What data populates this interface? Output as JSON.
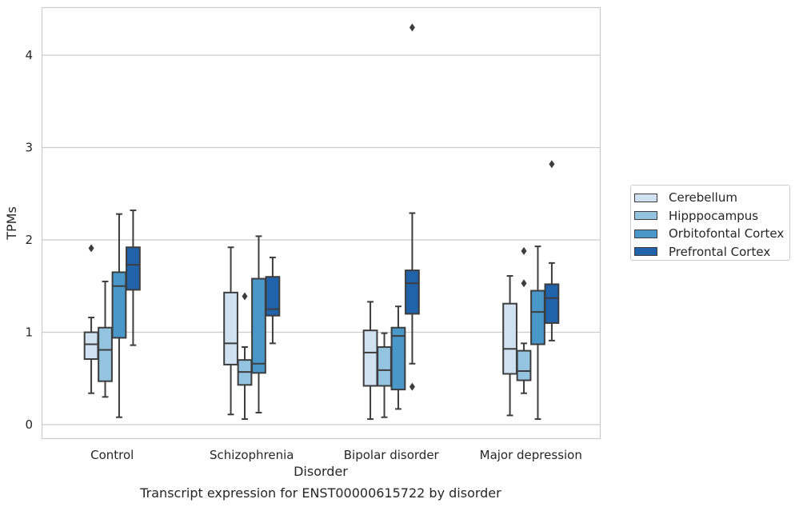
{
  "chart_data": {
    "type": "box",
    "title": "Transcript expression for ENST00000615722 by disorder",
    "xlabel": "Disorder",
    "ylabel": "TPMs",
    "ylim": [
      -0.15,
      4.5
    ],
    "yticks": [
      0,
      1,
      2,
      3,
      4
    ],
    "grid": "horizontal",
    "legend_position": "right",
    "categories": [
      "Control",
      "Schizophrenia",
      "Bipolar disorder",
      "Major depression"
    ],
    "series": [
      {
        "name": "Cerebellum",
        "color": "#d0e1f2",
        "boxes": [
          {
            "whisker_low": 0.34,
            "q1": 0.71,
            "median": 0.87,
            "q3": 1.0,
            "whisker_high": 1.16,
            "outliers": [
              1.91
            ]
          },
          {
            "whisker_low": 0.11,
            "q1": 0.65,
            "median": 0.88,
            "q3": 1.43,
            "whisker_high": 1.92,
            "outliers": []
          },
          {
            "whisker_low": 0.06,
            "q1": 0.42,
            "median": 0.78,
            "q3": 1.02,
            "whisker_high": 1.33,
            "outliers": []
          },
          {
            "whisker_low": 0.1,
            "q1": 0.55,
            "median": 0.82,
            "q3": 1.31,
            "whisker_high": 1.61,
            "outliers": []
          }
        ]
      },
      {
        "name": "Hipppocampus",
        "color": "#94c4df",
        "boxes": [
          {
            "whisker_low": 0.3,
            "q1": 0.47,
            "median": 0.81,
            "q3": 1.05,
            "whisker_high": 1.55,
            "outliers": []
          },
          {
            "whisker_low": 0.06,
            "q1": 0.43,
            "median": 0.57,
            "q3": 0.7,
            "whisker_high": 0.84,
            "outliers": [
              1.39
            ]
          },
          {
            "whisker_low": 0.08,
            "q1": 0.42,
            "median": 0.59,
            "q3": 0.84,
            "whisker_high": 0.99,
            "outliers": []
          },
          {
            "whisker_low": 0.34,
            "q1": 0.48,
            "median": 0.58,
            "q3": 0.8,
            "whisker_high": 0.88,
            "outliers": [
              1.53,
              1.88
            ]
          }
        ]
      },
      {
        "name": "Orbitofontal Cortex",
        "color": "#4a98c9",
        "boxes": [
          {
            "whisker_low": 0.08,
            "q1": 0.94,
            "median": 1.5,
            "q3": 1.65,
            "whisker_high": 2.28,
            "outliers": []
          },
          {
            "whisker_low": 0.13,
            "q1": 0.56,
            "median": 0.66,
            "q3": 1.58,
            "whisker_high": 2.04,
            "outliers": []
          },
          {
            "whisker_low": 0.17,
            "q1": 0.38,
            "median": 0.96,
            "q3": 1.05,
            "whisker_high": 1.28,
            "outliers": []
          },
          {
            "whisker_low": 0.06,
            "q1": 0.87,
            "median": 1.22,
            "q3": 1.45,
            "whisker_high": 1.93,
            "outliers": []
          }
        ]
      },
      {
        "name": "Prefrontal Cortex",
        "color": "#2163aa",
        "boxes": [
          {
            "whisker_low": 0.86,
            "q1": 1.46,
            "median": 1.73,
            "q3": 1.92,
            "whisker_high": 2.32,
            "outliers": []
          },
          {
            "whisker_low": 0.88,
            "q1": 1.18,
            "median": 1.25,
            "q3": 1.6,
            "whisker_high": 1.81,
            "outliers": []
          },
          {
            "whisker_low": 0.66,
            "q1": 1.2,
            "median": 1.53,
            "q3": 1.67,
            "whisker_high": 2.29,
            "outliers": [
              0.41,
              4.3
            ]
          },
          {
            "whisker_low": 0.91,
            "q1": 1.1,
            "median": 1.37,
            "q3": 1.52,
            "whisker_high": 1.75,
            "outliers": [
              2.82
            ]
          }
        ]
      }
    ]
  }
}
